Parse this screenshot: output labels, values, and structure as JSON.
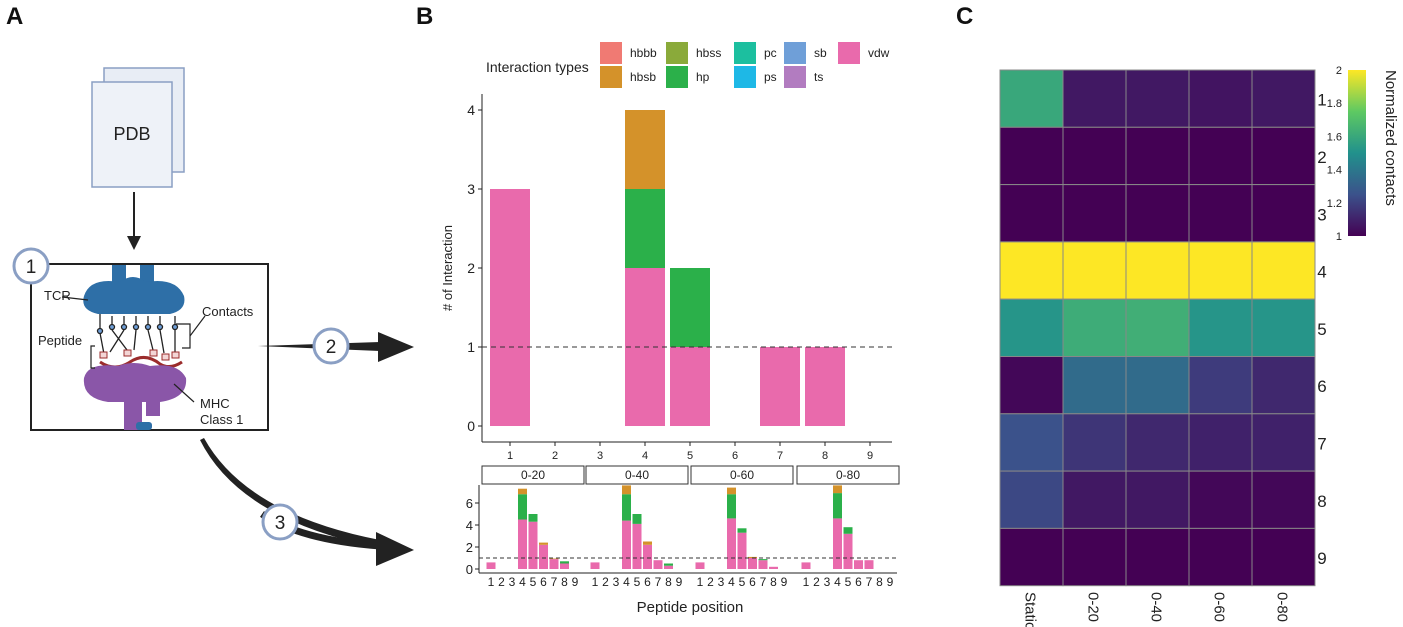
{
  "panels": {
    "a": "A",
    "b": "B",
    "c": "C"
  },
  "schematic": {
    "pdb_label": "PDB",
    "step1": "1",
    "step2": "2",
    "step3": "3",
    "tcr_label": "TCR",
    "contacts_label": "Contacts",
    "peptide_label": "Peptide",
    "mhc_label_line1": "MHC",
    "mhc_label_line2": "Class 1"
  },
  "colors": {
    "hbbb": "#f07a73",
    "hbsb": "#d4922a",
    "hbss": "#8aaa3a",
    "hp": "#2bb04a",
    "pc": "#1cbf9f",
    "ps": "#1eb8e6",
    "sb": "#6f9fd8",
    "ts": "#b27cc0",
    "vdw": "#e96aac"
  },
  "legend": {
    "title": "Interaction types",
    "items": [
      {
        "key": "hbbb",
        "label": "hbbb"
      },
      {
        "key": "hbsb",
        "label": "hbsb"
      },
      {
        "key": "hbss",
        "label": "hbss"
      },
      {
        "key": "hp",
        "label": "hp"
      },
      {
        "key": "pc",
        "label": "pc"
      },
      {
        "key": "ps",
        "label": "ps"
      },
      {
        "key": "sb",
        "label": "sb"
      },
      {
        "key": "ts",
        "label": "ts"
      },
      {
        "key": "vdw",
        "label": "vdw"
      }
    ]
  },
  "chart_data": [
    {
      "type": "bar",
      "stacked": true,
      "title": "",
      "xlabel": "",
      "ylabel": "# of Interaction",
      "categories": [
        "1",
        "2",
        "3",
        "4",
        "5",
        "6",
        "7",
        "8",
        "9"
      ],
      "series": [
        {
          "name": "vdw",
          "values": [
            3,
            0,
            0,
            2,
            1,
            0,
            1,
            1,
            0
          ]
        },
        {
          "name": "hp",
          "values": [
            0,
            0,
            0,
            1,
            1,
            0,
            0,
            0,
            0
          ]
        },
        {
          "name": "hbsb",
          "values": [
            0,
            0,
            0,
            1,
            0,
            0,
            0,
            0,
            0
          ]
        }
      ],
      "ylim": [
        0,
        4.2
      ],
      "yticks": [
        0,
        1,
        2,
        3,
        4
      ],
      "reference_line": 1
    },
    {
      "type": "bar",
      "stacked": true,
      "facets": [
        "0-20",
        "0-40",
        "0-60",
        "0-80"
      ],
      "xlabel": "Peptide position",
      "ylabel": "",
      "categories": [
        "1",
        "2",
        "3",
        "4",
        "5",
        "6",
        "7",
        "8",
        "9"
      ],
      "ylim": [
        0,
        7.6
      ],
      "yticks": [
        0,
        2,
        4,
        6
      ],
      "reference_line": 1,
      "series_by_facet": [
        {
          "vdw": [
            0.6,
            0,
            0,
            4.5,
            4.3,
            2.2,
            0.9,
            0.5,
            0
          ],
          "hp": [
            0,
            0,
            0,
            2.3,
            0.7,
            0,
            0,
            0.2,
            0
          ],
          "hbsb": [
            0,
            0,
            0,
            0.5,
            0,
            0.2,
            0.05,
            0,
            0
          ]
        },
        {
          "vdw": [
            0.6,
            0,
            0,
            4.4,
            4.1,
            2.2,
            0.8,
            0.3,
            0
          ],
          "hp": [
            0,
            0,
            0,
            2.4,
            0.9,
            0,
            0,
            0.2,
            0
          ],
          "hbsb": [
            0,
            0,
            0,
            0.8,
            0,
            0.3,
            0,
            0,
            0
          ]
        },
        {
          "vdw": [
            0.6,
            0,
            0,
            4.6,
            3.3,
            1.0,
            0.8,
            0.2,
            0
          ],
          "hp": [
            0,
            0,
            0,
            2.2,
            0.4,
            0,
            0.1,
            0,
            0
          ],
          "hbsb": [
            0,
            0,
            0,
            0.6,
            0,
            0.1,
            0,
            0,
            0
          ]
        },
        {
          "vdw": [
            0.6,
            0,
            0,
            4.6,
            3.2,
            0.8,
            0.8,
            0,
            0
          ],
          "hp": [
            0,
            0,
            0,
            2.3,
            0.6,
            0,
            0,
            0,
            0
          ],
          "hbsb": [
            0,
            0,
            0,
            0.7,
            0,
            0,
            0,
            0,
            0
          ]
        }
      ]
    },
    {
      "type": "heatmap",
      "xcategories": [
        "Static",
        "0-20",
        "0-40",
        "0-60",
        "0-80"
      ],
      "ycategories": [
        "1",
        "2",
        "3",
        "4",
        "5",
        "6",
        "7",
        "8",
        "9"
      ],
      "colorbar_label": "Normalized contacts",
      "colorbar_ticks": [
        "2",
        "1.8",
        "1.6",
        "1.4",
        "1.2",
        "1"
      ],
      "vmin": 1,
      "vmax": 2,
      "values": [
        [
          1.6,
          1.07,
          1.07,
          1.06,
          1.07
        ],
        [
          1.0,
          1.0,
          1.0,
          1.0,
          1.0
        ],
        [
          1.0,
          1.0,
          1.0,
          1.0,
          1.0
        ],
        [
          2.0,
          2.0,
          2.0,
          2.0,
          2.0
        ],
        [
          1.52,
          1.62,
          1.63,
          1.52,
          1.52
        ],
        [
          1.02,
          1.35,
          1.35,
          1.18,
          1.12
        ],
        [
          1.25,
          1.16,
          1.12,
          1.1,
          1.1
        ],
        [
          1.22,
          1.07,
          1.07,
          1.02,
          1.02
        ],
        [
          1.0,
          1.0,
          1.0,
          1.0,
          1.0
        ]
      ]
    }
  ]
}
